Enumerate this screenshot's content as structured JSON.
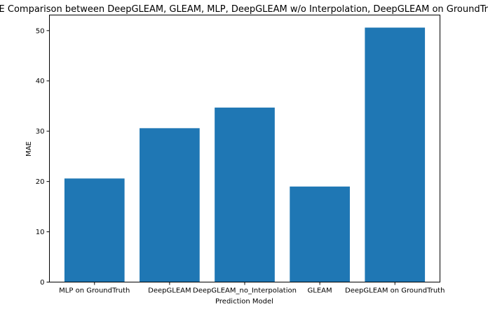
{
  "chart_data": {
    "type": "bar",
    "title": "MAE Comparison between DeepGLEAM, GLEAM, MLP, DeepGLEAM w/o Interpolation, DeepGLEAM on GroundTruth",
    "xlabel": "Prediction Model",
    "ylabel": "MAE",
    "categories": [
      "MLP on GroundTruth",
      "DeepGLEAM",
      "DeepGLEAM_no_Interpolation",
      "GLEAM",
      "DeepGLEAM on GroundTruth"
    ],
    "values": [
      20.6,
      30.6,
      34.7,
      19.0,
      50.6
    ],
    "ylim": [
      0,
      53.1
    ],
    "yticks": [
      0,
      10,
      20,
      30,
      40,
      50
    ],
    "grid": false,
    "bar_color": "#1f77b4"
  }
}
